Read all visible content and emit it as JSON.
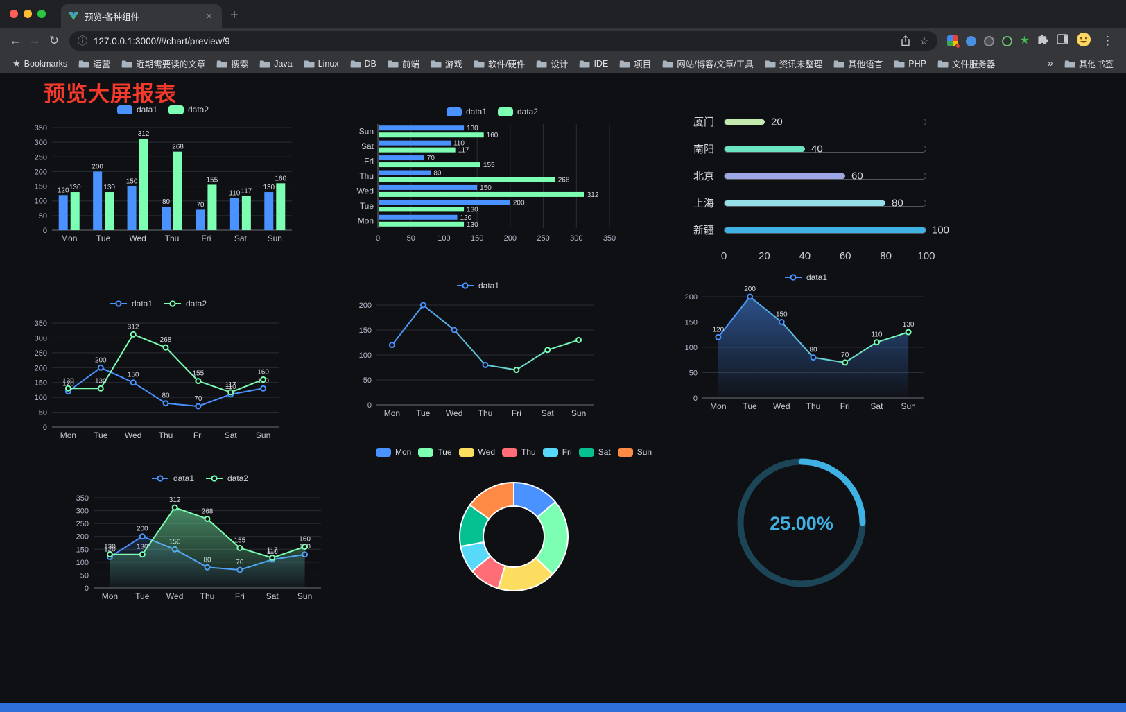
{
  "window": {
    "tab_title": "预览-各种组件",
    "url": "127.0.0.1:3000/#/chart/preview/9"
  },
  "icons": {
    "back": "←",
    "forward": "→",
    "reload": "↻",
    "info": "ⓘ",
    "star": "☆",
    "close_tab": "×",
    "new_tab": "+",
    "menu": "⋮"
  },
  "bookmarks": {
    "items": [
      {
        "label": "Bookmarks",
        "icon": "star"
      },
      {
        "label": "运营",
        "icon": "folder"
      },
      {
        "label": "近期需要读的文章",
        "icon": "folder"
      },
      {
        "label": "搜索",
        "icon": "folder"
      },
      {
        "label": "Java",
        "icon": "folder"
      },
      {
        "label": "Linux",
        "icon": "folder"
      },
      {
        "label": "DB",
        "icon": "folder"
      },
      {
        "label": "前端",
        "icon": "folder"
      },
      {
        "label": "游戏",
        "icon": "folder"
      },
      {
        "label": "软件/硬件",
        "icon": "folder"
      },
      {
        "label": "设计",
        "icon": "folder"
      },
      {
        "label": "IDE",
        "icon": "folder"
      },
      {
        "label": "项目",
        "icon": "folder"
      },
      {
        "label": "网站/博客/文章/工具",
        "icon": "folder"
      },
      {
        "label": "资讯未整理",
        "icon": "folder"
      },
      {
        "label": "其他语言",
        "icon": "folder"
      },
      {
        "label": "PHP",
        "icon": "folder"
      },
      {
        "label": "文件服务器",
        "icon": "folder"
      }
    ],
    "overflow": "»",
    "other_label": "其他书签"
  },
  "page": {
    "title": "预览大屏报表",
    "title_color": "#f5392b",
    "bottom_bar_color": "#2e6fd9"
  },
  "chart_data": [
    {
      "id": "bar-vertical",
      "type": "bar",
      "categories": [
        "Mon",
        "Tue",
        "Wed",
        "Thu",
        "Fri",
        "Sat",
        "Sun"
      ],
      "series": [
        {
          "name": "data1",
          "color": "#4992ff",
          "values": [
            120,
            200,
            150,
            80,
            70,
            110,
            130
          ]
        },
        {
          "name": "data2",
          "color": "#7cffb2",
          "values": [
            130,
            130,
            312,
            268,
            155,
            117,
            160
          ]
        }
      ],
      "ylim": [
        0,
        350
      ],
      "yticks": [
        0,
        50,
        100,
        150,
        200,
        250,
        300,
        350
      ],
      "show_labels": true,
      "legend_position": "top",
      "grid": true
    },
    {
      "id": "bar-horizontal",
      "type": "hbar",
      "categories": [
        "Mon",
        "Tue",
        "Wed",
        "Thu",
        "Fri",
        "Sat",
        "Sun"
      ],
      "series": [
        {
          "name": "data1",
          "color": "#4992ff",
          "values": [
            120,
            200,
            150,
            80,
            70,
            110,
            130
          ]
        },
        {
          "name": "data2",
          "color": "#7cffb2",
          "values": [
            130,
            130,
            312,
            268,
            155,
            117,
            160
          ]
        }
      ],
      "xlim": [
        0,
        350
      ],
      "xticks": [
        0,
        50,
        100,
        150,
        200,
        250,
        300,
        350
      ],
      "show_labels": true,
      "legend_position": "top",
      "grid": true
    },
    {
      "id": "progress-bars",
      "type": "progress",
      "max": 100,
      "xticks": [
        0,
        20,
        40,
        60,
        80,
        100
      ],
      "rows": [
        {
          "label": "厦门",
          "value": 20,
          "color": "#c4ebad"
        },
        {
          "label": "南阳",
          "value": 40,
          "color": "#6be6c1"
        },
        {
          "label": "北京",
          "value": 60,
          "color": "#a0a7e6"
        },
        {
          "label": "上海",
          "value": 80,
          "color": "#96dee8"
        },
        {
          "label": "新疆",
          "value": 100,
          "color": "#3fb1e3"
        }
      ]
    },
    {
      "id": "line-two",
      "type": "line",
      "categories": [
        "Mon",
        "Tue",
        "Wed",
        "Thu",
        "Fri",
        "Sat",
        "Sun"
      ],
      "series": [
        {
          "name": "data1",
          "color": "#4992ff",
          "values": [
            120,
            200,
            150,
            80,
            70,
            110,
            130
          ]
        },
        {
          "name": "data2",
          "color": "#7cffb2",
          "values": [
            130,
            130,
            312,
            268,
            155,
            117,
            160
          ]
        }
      ],
      "ylim": [
        0,
        350
      ],
      "yticks": [
        0,
        50,
        100,
        150,
        200,
        250,
        300,
        350
      ],
      "show_labels": true,
      "legend_position": "top",
      "grid": true
    },
    {
      "id": "line-gradient",
      "type": "line",
      "categories": [
        "Mon",
        "Tue",
        "Wed",
        "Thu",
        "Fri",
        "Sat",
        "Sun"
      ],
      "series": [
        {
          "name": "data1",
          "color": "#4992ff",
          "color2": "#7cffb2",
          "values": [
            120,
            200,
            150,
            80,
            70,
            110,
            130
          ]
        }
      ],
      "ylim": [
        0,
        200
      ],
      "yticks": [
        0,
        50,
        100,
        150,
        200
      ],
      "show_labels": false,
      "legend_position": "top",
      "grid": true
    },
    {
      "id": "line-area",
      "type": "line",
      "categories": [
        "Mon",
        "Tue",
        "Wed",
        "Thu",
        "Fri",
        "Sat",
        "Sun"
      ],
      "series": [
        {
          "name": "data1",
          "color": "#4992ff",
          "color2": "#7cffb2",
          "area": true,
          "area_alpha": 0.5,
          "values": [
            120,
            200,
            150,
            80,
            70,
            110,
            130
          ]
        }
      ],
      "ylim": [
        0,
        200
      ],
      "yticks": [
        0,
        50,
        100,
        150,
        200
      ],
      "show_labels": true,
      "legend_position": "top",
      "grid": true
    },
    {
      "id": "line-two-area",
      "type": "line",
      "categories": [
        "Mon",
        "Tue",
        "Wed",
        "Thu",
        "Fri",
        "Sat",
        "Sun"
      ],
      "series": [
        {
          "name": "data1",
          "color": "#4992ff",
          "area": true,
          "area_alpha": 0.18,
          "values": [
            120,
            200,
            150,
            80,
            70,
            110,
            130
          ]
        },
        {
          "name": "data2",
          "color": "#7cffb2",
          "area": true,
          "area_alpha": 0.5,
          "values": [
            130,
            130,
            312,
            268,
            155,
            117,
            160
          ]
        }
      ],
      "ylim": [
        0,
        350
      ],
      "yticks": [
        0,
        50,
        100,
        150,
        200,
        250,
        300,
        350
      ],
      "show_labels": true,
      "legend_position": "top",
      "grid": true
    },
    {
      "id": "donut",
      "type": "pie",
      "legend_position": "top",
      "slices": [
        {
          "label": "Mon",
          "value": 120,
          "color": "#4992ff"
        },
        {
          "label": "Tue",
          "value": 200,
          "color": "#7cffb2"
        },
        {
          "label": "Wed",
          "value": 150,
          "color": "#fddd60"
        },
        {
          "label": "Thu",
          "value": 80,
          "color": "#ff6e76"
        },
        {
          "label": "Fri",
          "value": 70,
          "color": "#58d9f9"
        },
        {
          "label": "Sat",
          "value": 110,
          "color": "#05c091"
        },
        {
          "label": "Sun",
          "value": 130,
          "color": "#ff8a45"
        }
      ]
    },
    {
      "id": "gauge",
      "type": "gauge",
      "value": 25,
      "label": "25.00%",
      "color": "#3fb1e3",
      "track_color": "#1c4658",
      "text_color": "#3fb1e3"
    }
  ]
}
